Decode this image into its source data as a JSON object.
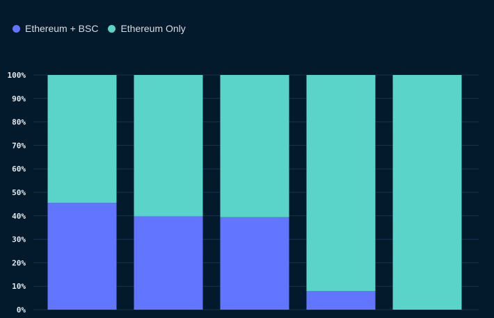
{
  "legend": {
    "series_a_label": "Ethereum + BSC",
    "series_b_label": "Ethereum Only"
  },
  "colors": {
    "background": "#021a2b",
    "series_a": "#6275ff",
    "series_b": "#5ad3c8",
    "grid": "#17344c",
    "tick_text": "#e3e8ee"
  },
  "chart_data": {
    "type": "bar",
    "stacked": true,
    "categories": [
      "",
      "",
      "",
      "",
      ""
    ],
    "series": [
      {
        "name": "Ethereum + BSC",
        "values": [
          45.5,
          39.8,
          39.4,
          7.9,
          0
        ]
      },
      {
        "name": "Ethereum Only",
        "values": [
          54.5,
          60.2,
          60.6,
          92.1,
          100
        ]
      }
    ],
    "y_ticks": [
      "0%",
      "10%",
      "20%",
      "30%",
      "40%",
      "50%",
      "60%",
      "70%",
      "80%",
      "90%",
      "100%"
    ],
    "ylim": [
      0,
      100
    ],
    "grid": true,
    "legend_position": "top-left",
    "title": "",
    "xlabel": "",
    "ylabel": ""
  }
}
